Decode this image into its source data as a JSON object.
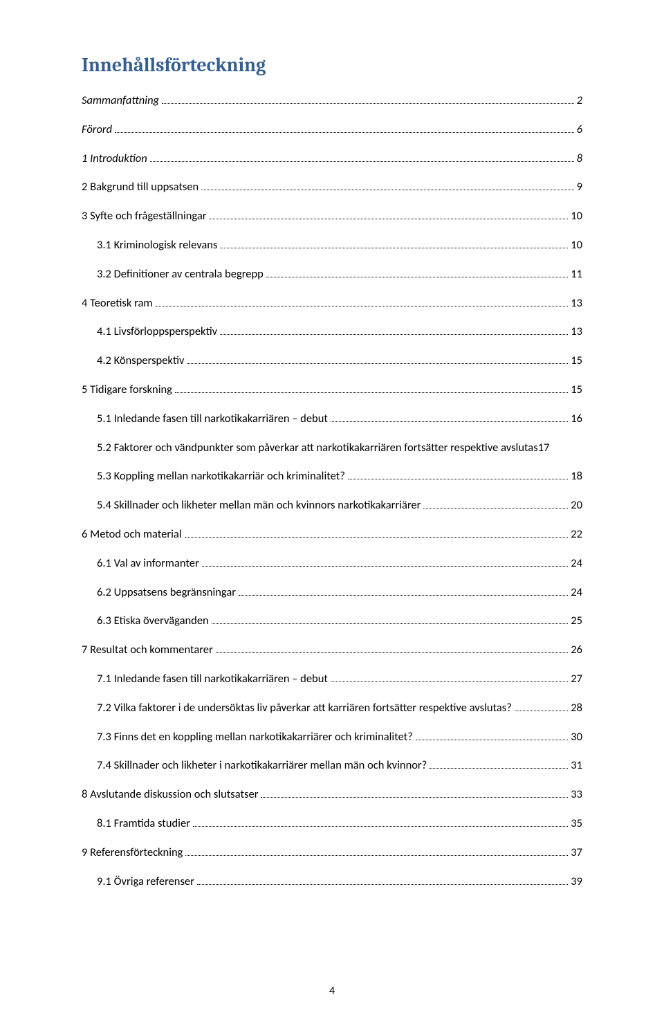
{
  "title": "Innehållsförteckning",
  "page_number": "4",
  "entries": [
    {
      "label": "Sammanfattning",
      "page": "2",
      "lvl": "lvl0",
      "italic": true
    },
    {
      "label": "Förord",
      "page": "6",
      "lvl": "lvl0",
      "italic": true
    },
    {
      "label": "1 Introduktion",
      "page": "8",
      "lvl": "lvl0",
      "italic": true
    },
    {
      "label": "2 Bakgrund till uppsatsen",
      "page": "9",
      "lvl": "lvl0b"
    },
    {
      "label": "3 Syfte och frågeställningar",
      "page": "10",
      "lvl": "lvl0b"
    },
    {
      "label": "3.1 Kriminologisk relevans",
      "page": "10",
      "lvl": "lvl1"
    },
    {
      "label": "3.2 Definitioner av centrala begrepp",
      "page": "11",
      "lvl": "lvl1"
    },
    {
      "label": "4 Teoretisk ram",
      "page": "13",
      "lvl": "lvl0b"
    },
    {
      "label": "4.1 Livsförloppsperspektiv",
      "page": "13",
      "lvl": "lvl1"
    },
    {
      "label": "4.2 Könsperspektiv",
      "page": "15",
      "lvl": "lvl1"
    },
    {
      "label": "5 Tidigare forskning",
      "page": "15",
      "lvl": "lvl0b"
    },
    {
      "label": "5.1 Inledande fasen till narkotikakarriären – debut",
      "page": "16",
      "lvl": "lvl1"
    },
    {
      "label": "5.2 Faktorer och vändpunkter som påverkar att narkotikakarriären fortsätter respektive avslutas",
      "page": "17",
      "lvl": "lvl1",
      "nodots": true
    },
    {
      "label": "5.3  Koppling mellan narkotikakarriär och kriminalitet?",
      "page": "18",
      "lvl": "lvl1"
    },
    {
      "label": "5.4 Skillnader och likheter mellan män och kvinnors narkotikakarriärer",
      "page": "20",
      "lvl": "lvl1"
    },
    {
      "label": "6 Metod och material",
      "page": "22",
      "lvl": "lvl0b"
    },
    {
      "label": "6.1 Val av informanter",
      "page": "24",
      "lvl": "lvl1"
    },
    {
      "label": "6.2 Uppsatsens begränsningar",
      "page": "24",
      "lvl": "lvl1"
    },
    {
      "label": "6.3 Etiska överväganden",
      "page": "25",
      "lvl": "lvl1"
    },
    {
      "label": "7 Resultat och kommentarer",
      "page": "26",
      "lvl": "lvl0b"
    },
    {
      "label": "7.1 Inledande fasen till narkotikakarriären – debut",
      "page": "27",
      "lvl": "lvl1"
    },
    {
      "label": "7.2 Vilka faktorer i de undersöktas liv påverkar att karriären fortsätter respektive avslutas?",
      "page": "28",
      "lvl": "lvl1"
    },
    {
      "label": "7.3 Finns det en koppling mellan narkotikakarriärer och kriminalitet?",
      "page": "30",
      "lvl": "lvl1"
    },
    {
      "label": "7.4 Skillnader och likheter i narkotikakarriärer mellan män och kvinnor?",
      "page": "31",
      "lvl": "lvl1"
    },
    {
      "label": "8 Avslutande diskussion och slutsatser",
      "page": "33",
      "lvl": "lvl0b"
    },
    {
      "label": "8.1 Framtida studier",
      "page": "35",
      "lvl": "lvl1"
    },
    {
      "label": "9 Referensförteckning",
      "page": "37",
      "lvl": "lvl0b"
    },
    {
      "label": "9.1 Övriga referenser",
      "page": "39",
      "lvl": "lvl1"
    }
  ]
}
